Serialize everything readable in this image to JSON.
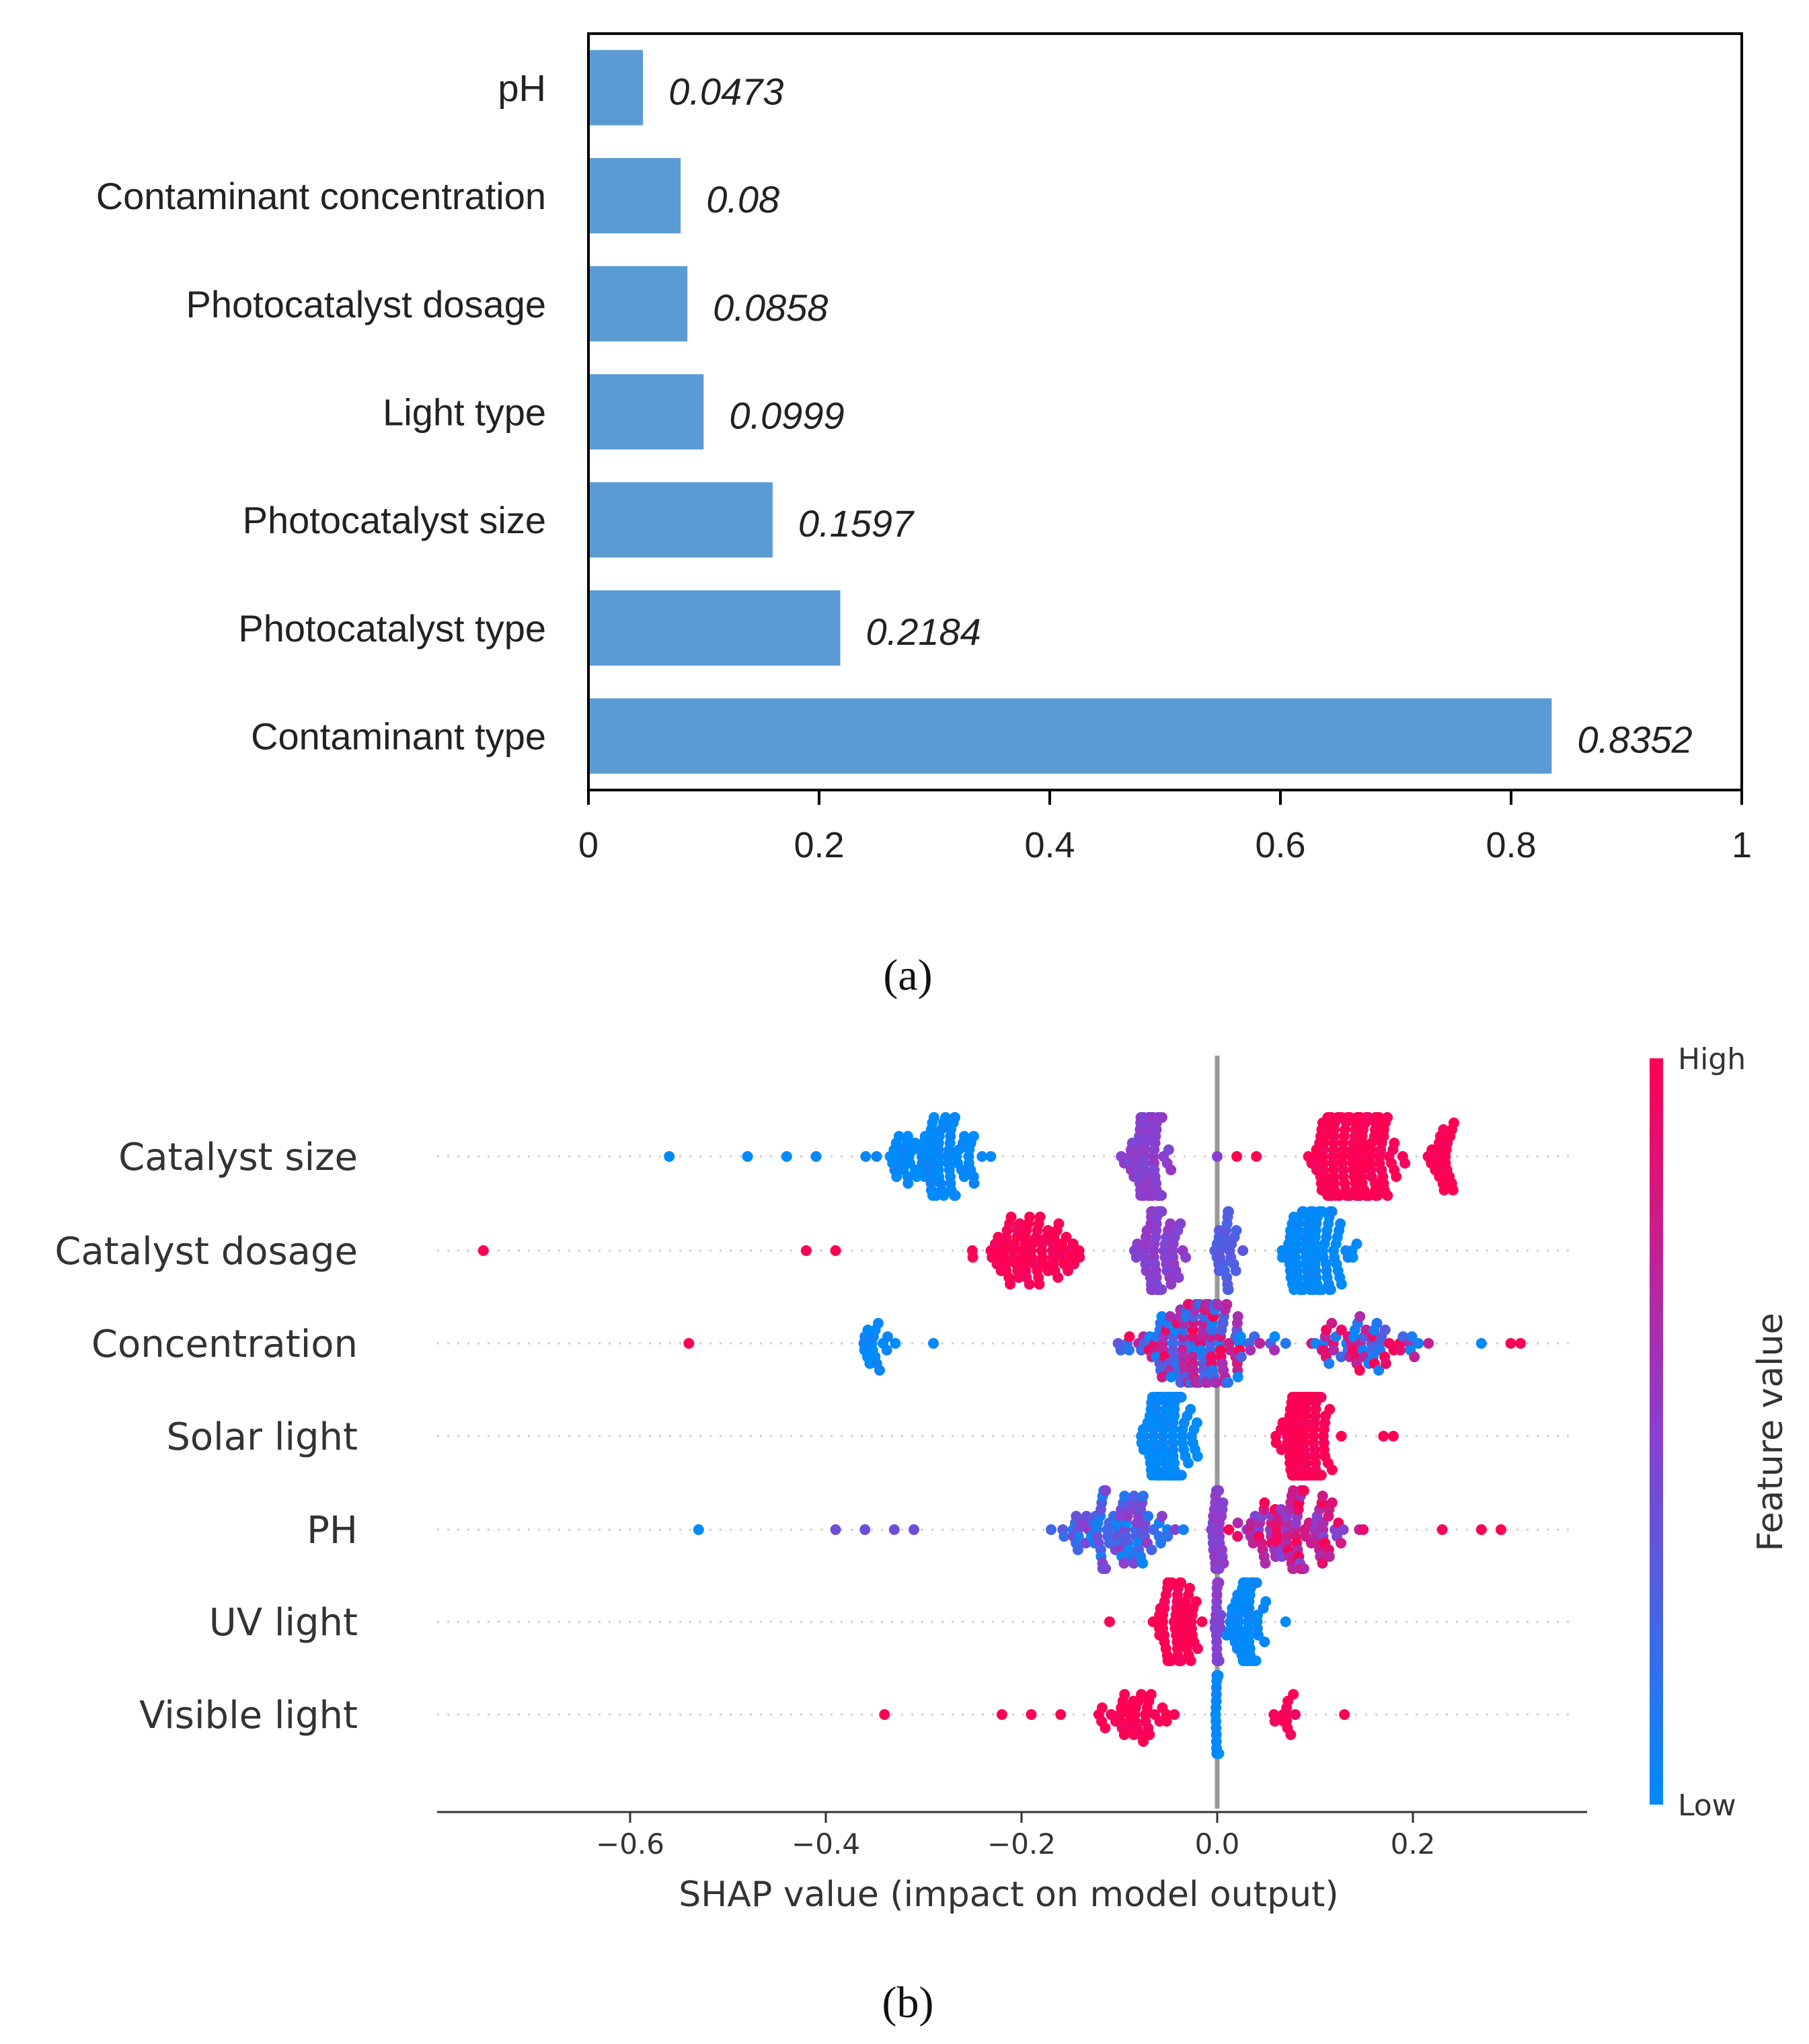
{
  "chart_data": [
    {
      "type": "bar",
      "orientation": "horizontal",
      "panel_label": "(a)",
      "categories": [
        "pH",
        "Contaminant concentration",
        "Photocatalyst dosage",
        "Light type",
        "Photocatalyst size",
        "Photocatalyst type",
        "Contaminant type"
      ],
      "values": [
        0.0473,
        0.08,
        0.0858,
        0.0999,
        0.1597,
        0.2184,
        0.8352
      ],
      "value_labels": [
        "0.0473",
        "0.08",
        "0.0858",
        "0.0999",
        "0.1597",
        "0.2184",
        "0.8352"
      ],
      "xlim": [
        0,
        1
      ],
      "xticks": [
        "0",
        "0.2",
        "0.4",
        "0.6",
        "0.8",
        "1"
      ],
      "bar_color": "#5b9bd5"
    },
    {
      "type": "scatter",
      "subtype": "shap_beeswarm",
      "panel_label": "(b)",
      "features": [
        "Catalyst size",
        "Catalyst dosage",
        "Concentration",
        "Solar light",
        "PH",
        "UV light",
        "Visible light"
      ],
      "xlabel": "SHAP value (impact on model output)",
      "xlim": [
        -0.8,
        0.38
      ],
      "xticks": [
        -0.6,
        -0.4,
        -0.2,
        0.0,
        0.2
      ],
      "xtick_labels": [
        "−0.6",
        "−0.4",
        "−0.2",
        "0.0",
        "0.2"
      ],
      "colorbar": {
        "title": "Feature value",
        "high": "High",
        "low": "Low",
        "high_color": "#ff0052",
        "mid_color": "#8a3fd0",
        "low_color": "#008bfb"
      },
      "feature_value_scale": "0 = Low, 1 = High",
      "point_groups": [
        {
          "feature": "Catalyst size",
          "note": "clusters: low values negative, medium near -0.07, high positive",
          "clusters": [
            {
              "center": -0.29,
              "spread": 0.07,
              "count": 90,
              "value": 0.0
            },
            {
              "center": -0.07,
              "spread": 0.025,
              "count": 80,
              "value": 0.5
            },
            {
              "center": 0.15,
              "spread": 0.05,
              "count": 110,
              "value": 1.0
            },
            {
              "center": 0.23,
              "spread": 0.02,
              "count": 25,
              "value": 1.0
            },
            {
              "center": 0.11,
              "spread": 0.02,
              "count": 40,
              "value": 1.0
            }
          ],
          "outliers": [
            [
              -0.56,
              0.0
            ],
            [
              -0.48,
              0.0
            ],
            [
              -0.44,
              0.0
            ],
            [
              -0.41,
              0.0
            ],
            [
              0.0,
              0.5
            ],
            [
              0.02,
              1.0
            ],
            [
              0.04,
              1.0
            ]
          ]
        },
        {
          "feature": "Catalyst dosage",
          "clusters": [
            {
              "center": -0.2,
              "spread": 0.07,
              "count": 80,
              "value": 1.0
            },
            {
              "center": -0.06,
              "spread": 0.03,
              "count": 70,
              "value": 0.5
            },
            {
              "center": 0.1,
              "spread": 0.04,
              "count": 100,
              "value": 0.0
            },
            {
              "center": 0.01,
              "spread": 0.015,
              "count": 30,
              "value": 0.3
            }
          ],
          "outliers": [
            [
              -0.75,
              1.0
            ],
            [
              -0.42,
              1.0
            ],
            [
              -0.39,
              1.0
            ]
          ]
        },
        {
          "feature": "Concentration",
          "clusters": [
            {
              "center": -0.02,
              "spread": 0.09,
              "count": 160,
              "value": "mix"
            },
            {
              "center": 0.15,
              "spread": 0.08,
              "count": 60,
              "value": "mix"
            },
            {
              "center": -0.35,
              "spread": 0.03,
              "count": 18,
              "value": 0.0
            }
          ],
          "outliers": [
            [
              -0.54,
              1.0
            ],
            [
              -0.29,
              0.0
            ],
            [
              0.27,
              0.0
            ],
            [
              0.3,
              1.0
            ],
            [
              0.31,
              1.0
            ]
          ]
        },
        {
          "feature": "Solar light",
          "clusters": [
            {
              "center": -0.05,
              "spread": 0.03,
              "count": 150,
              "value": 0.0
            },
            {
              "center": 0.09,
              "spread": 0.035,
              "count": 150,
              "value": 1.0
            }
          ],
          "outliers": [
            [
              0.17,
              1.0
            ],
            [
              0.18,
              1.0
            ]
          ]
        },
        {
          "feature": "PH",
          "clusters": [
            {
              "center": -0.1,
              "spread": 0.08,
              "count": 90,
              "value": "lowmid"
            },
            {
              "center": 0.08,
              "spread": 0.07,
              "count": 100,
              "value": "midhigh"
            },
            {
              "center": 0.0,
              "spread": 0.01,
              "count": 30,
              "value": 0.5
            }
          ],
          "outliers": [
            [
              -0.53,
              0.0
            ],
            [
              -0.39,
              0.4
            ],
            [
              -0.36,
              0.4
            ],
            [
              -0.33,
              0.4
            ],
            [
              -0.31,
              0.4
            ],
            [
              0.29,
              1.0
            ],
            [
              0.27,
              1.0
            ],
            [
              0.23,
              1.0
            ]
          ]
        },
        {
          "feature": "UV light",
          "clusters": [
            {
              "center": -0.04,
              "spread": 0.03,
              "count": 70,
              "value": 1.0
            },
            {
              "center": 0.03,
              "spread": 0.02,
              "count": 70,
              "value": 0.0
            },
            {
              "center": 0.0,
              "spread": 0.005,
              "count": 25,
              "value": 0.5
            }
          ],
          "outliers": [
            [
              -0.11,
              1.0
            ],
            [
              0.07,
              0.0
            ]
          ]
        },
        {
          "feature": "Visible light",
          "clusters": [
            {
              "center": -0.08,
              "spread": 0.05,
              "count": 40,
              "value": 1.0
            },
            {
              "center": 0.0,
              "spread": 0.002,
              "count": 40,
              "value": 0.0
            },
            {
              "center": 0.07,
              "spread": 0.02,
              "count": 12,
              "value": 1.0
            }
          ],
          "outliers": [
            [
              -0.34,
              1.0
            ],
            [
              -0.22,
              1.0
            ],
            [
              -0.19,
              1.0
            ],
            [
              -0.16,
              1.0
            ],
            [
              0.13,
              1.0
            ]
          ]
        }
      ]
    }
  ],
  "captions": {
    "a": "(a)",
    "b": "(b)"
  }
}
